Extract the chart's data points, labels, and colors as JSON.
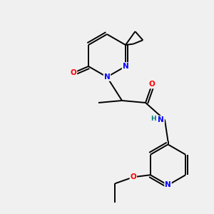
{
  "background_color": "#f0f0f0",
  "bond_color": "#000000",
  "atom_colors": {
    "N": "#0000ff",
    "O": "#ff0000",
    "H": "#008080",
    "C": "#000000"
  },
  "lw": 1.4,
  "font_size": 7.5
}
